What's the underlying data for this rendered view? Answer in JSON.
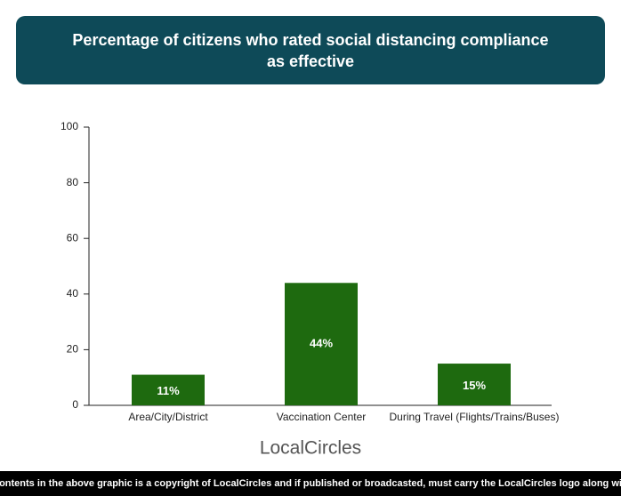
{
  "chart_data": {
    "type": "bar",
    "title": "Percentage of citizens who rated social distancing compliance as effective",
    "categories": [
      "Area/City/District",
      "Vaccination Center",
      "During Travel (Flights/Trains/Buses)"
    ],
    "values": [
      11,
      44,
      15
    ],
    "value_labels": [
      "11%",
      "44%",
      "15%"
    ],
    "color": "#1e6a0f",
    "ylim": [
      0,
      100
    ],
    "yticks": [
      0,
      20,
      40,
      60,
      80,
      100
    ],
    "grid": false
  },
  "logo": "LocalCircles",
  "footer": "All contents in the above graphic is a copyright of LocalCircles and if published or broadcasted, must carry the LocalCircles logo along with it."
}
